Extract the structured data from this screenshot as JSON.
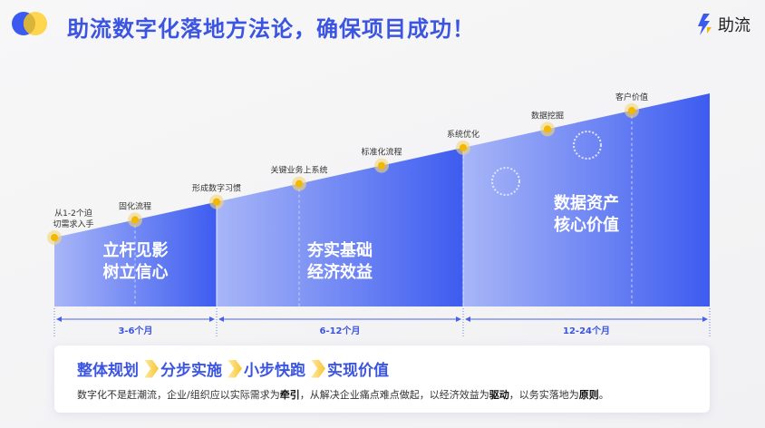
{
  "header": {
    "title": "助流数字化落地方法论，确保项目成功！",
    "brand": "助流"
  },
  "colors": {
    "accent": "#3b55e0",
    "dot": "#f5b800",
    "light_blue": "#a8b6f7",
    "dark_blue": "#3d5cf0"
  },
  "milestones": [
    {
      "label": "从1-2个迫",
      "label2": "切需求入手"
    },
    {
      "label": "固化流程"
    },
    {
      "label": "形成数字习惯"
    },
    {
      "label": "关键业务上系统"
    },
    {
      "label": "标准化流程"
    },
    {
      "label": "系统优化"
    },
    {
      "label": "数据挖掘"
    },
    {
      "label": "客户价值"
    }
  ],
  "phases": [
    {
      "line1": "立杆见影",
      "line2": "树立信心",
      "duration": "3-6个月"
    },
    {
      "line1": "夯实基础",
      "line2": "经济效益",
      "duration": "6-12个月"
    },
    {
      "line1": "数据资产",
      "line2": "核心价值",
      "duration": "12-24个月"
    }
  ],
  "card": {
    "steps": [
      "整体规划",
      "分步实施",
      "小步快跑",
      "实现价值"
    ],
    "desc": {
      "t1": "数字化不是赶潮流，企业/组织应以实际需求为",
      "b1": "牵引",
      "t2": "，从解决企业痛点难点做起，以经济效益为",
      "b2": "驱动",
      "t3": "，以务实落地为",
      "b3": "原则",
      "t4": "。"
    }
  }
}
